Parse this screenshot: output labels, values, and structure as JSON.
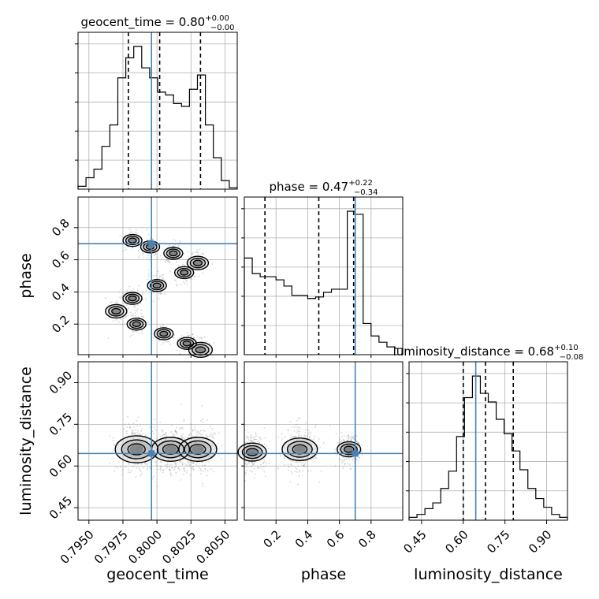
{
  "chart_data": {
    "type": "corner",
    "parameters": [
      "geocent_time",
      "phase",
      "luminosity_distance"
    ],
    "truth": {
      "geocent_time": 0.7996,
      "phase": 0.7,
      "luminosity_distance": 0.645
    },
    "panels": {
      "geocent_time": {
        "title_value": "0.80",
        "title_plus": "+0.00",
        "title_minus": "−0.00",
        "quantiles": [
          0.7979,
          0.8002,
          0.8032
        ],
        "xlim": [
          0.7942,
          0.8059
        ],
        "ticks": [
          0.795,
          0.7975,
          0.8,
          0.8025,
          0.805
        ],
        "tick_labels": [
          "0.7950",
          "0.7975",
          "0.8000",
          "0.8025",
          "0.8050"
        ],
        "xlabel": "geocent_time",
        "hist": {
          "edges_start": 0.7942,
          "bin_width": 0.000585,
          "counts": [
            0.02,
            0.08,
            0.14,
            0.3,
            0.45,
            0.78,
            0.92,
            1.0,
            0.85,
            0.78,
            0.68,
            0.66,
            0.6,
            0.58,
            0.7,
            0.8,
            0.45,
            0.22,
            0.06,
            0.01
          ]
        }
      },
      "phase": {
        "title_value": "0.47",
        "title_plus": "+0.22",
        "title_minus": "−0.34",
        "quantiles": [
          0.13,
          0.47,
          0.69
        ],
        "xlim": [
          0.0,
          1.0
        ],
        "ticks": [
          0.2,
          0.4,
          0.6,
          0.8
        ],
        "tick_labels": [
          "0.2",
          "0.4",
          "0.6",
          "0.8"
        ],
        "ylabel": "phase",
        "xlabel": "phase",
        "hist": {
          "edges_start": 0.0,
          "bin_width": 0.05,
          "counts": [
            0.62,
            0.52,
            0.5,
            0.5,
            0.48,
            0.44,
            0.38,
            0.38,
            0.36,
            0.37,
            0.4,
            0.42,
            0.42,
            0.92,
            0.9,
            0.2,
            0.12,
            0.08,
            0.05,
            0.04
          ]
        }
      },
      "luminosity_distance": {
        "title_value": "0.68",
        "title_plus": "+0.10",
        "title_minus": "−0.08",
        "quantiles": [
          0.6,
          0.68,
          0.78
        ],
        "xlim": [
          0.405,
          0.975
        ],
        "ticks": [
          0.45,
          0.6,
          0.75,
          0.9
        ],
        "tick_labels": [
          "0.45",
          "0.60",
          "0.75",
          "0.90"
        ],
        "ylabel": "luminosity_distance",
        "xlabel": "luminosity_distance",
        "hist": {
          "edges_start": 0.405,
          "bin_width": 0.0285,
          "counts": [
            0.02,
            0.04,
            0.08,
            0.12,
            0.22,
            0.34,
            0.58,
            0.85,
            1.0,
            0.88,
            0.82,
            0.7,
            0.6,
            0.48,
            0.35,
            0.22,
            0.15,
            0.09,
            0.04,
            0.02
          ]
        }
      }
    },
    "scatter_2d": [
      {
        "x": "geocent_time",
        "y": "phase",
        "xlim": [
          0.7942,
          0.8059
        ],
        "ylim": [
          0.01,
          0.99
        ],
        "yticks": [
          0.2,
          0.4,
          0.6,
          0.8
        ],
        "ytick_labels": [
          "0.2",
          "0.4",
          "0.6",
          "0.8"
        ],
        "density_centers": [
          {
            "x": 0.7982,
            "y": 0.72,
            "s": 0.08
          },
          {
            "x": 0.7995,
            "y": 0.68,
            "s": 0.08
          },
          {
            "x": 0.8012,
            "y": 0.64,
            "s": 0.08
          },
          {
            "x": 0.803,
            "y": 0.58,
            "s": 0.09
          },
          {
            "x": 0.802,
            "y": 0.52,
            "s": 0.08
          },
          {
            "x": 0.8,
            "y": 0.44,
            "s": 0.08
          },
          {
            "x": 0.7982,
            "y": 0.36,
            "s": 0.08
          },
          {
            "x": 0.797,
            "y": 0.28,
            "s": 0.09
          },
          {
            "x": 0.7985,
            "y": 0.2,
            "s": 0.08
          },
          {
            "x": 0.8005,
            "y": 0.14,
            "s": 0.08
          },
          {
            "x": 0.8022,
            "y": 0.08,
            "s": 0.08
          },
          {
            "x": 0.8032,
            "y": 0.04,
            "s": 0.1
          }
        ]
      },
      {
        "x": "geocent_time",
        "y": "luminosity_distance",
        "xlim": [
          0.7942,
          0.8059
        ],
        "ylim": [
          0.405,
          0.975
        ],
        "yticks": [
          0.45,
          0.6,
          0.75,
          0.9
        ],
        "ytick_labels": [
          "0.45",
          "0.60",
          "0.75",
          "0.90"
        ],
        "density_centers": [
          {
            "x": 0.7985,
            "y": 0.66,
            "s": 0.18
          },
          {
            "x": 0.801,
            "y": 0.66,
            "s": 0.16
          },
          {
            "x": 0.803,
            "y": 0.66,
            "s": 0.16
          }
        ]
      },
      {
        "x": "phase",
        "y": "luminosity_distance",
        "xlim": [
          0.0,
          1.0
        ],
        "ylim": [
          0.405,
          0.975
        ],
        "yticks": [
          0.45,
          0.6,
          0.75,
          0.9
        ],
        "ytick_labels": [
          "0.45",
          "0.60",
          "0.75",
          "0.90"
        ],
        "density_centers": [
          {
            "x": 0.05,
            "y": 0.65,
            "s": 0.12
          },
          {
            "x": 0.35,
            "y": 0.66,
            "s": 0.15
          },
          {
            "x": 0.66,
            "y": 0.66,
            "s": 0.1
          }
        ]
      }
    ],
    "colors": {
      "truth_line": "#4682b4",
      "hist_line": "#000000",
      "quantile_line": "#000000",
      "grid": "#b0b0b0"
    },
    "grid": true
  }
}
